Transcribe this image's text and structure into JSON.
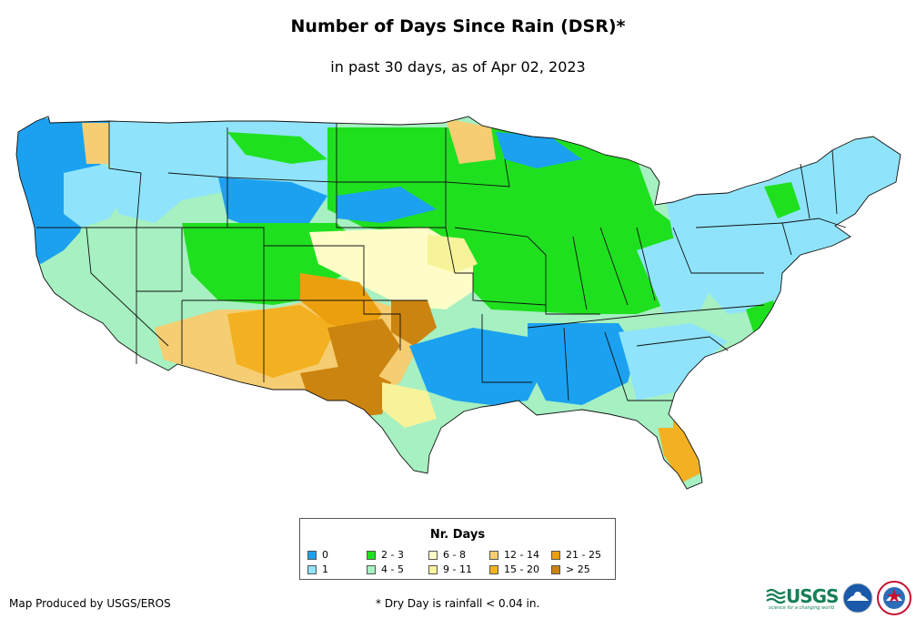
{
  "title": "Number of Days Since Rain (DSR)*",
  "subtitle": "in past 30 days, as of Apr 02, 2023",
  "legend": {
    "title": "Nr. Days",
    "items": [
      {
        "label": "0",
        "color": "#1ba1f0"
      },
      {
        "label": "1",
        "color": "#8fe4fb"
      },
      {
        "label": "2 - 3",
        "color": "#1fe01f"
      },
      {
        "label": "4 - 5",
        "color": "#a6f0c1"
      },
      {
        "label": "6 - 8",
        "color": "#fefdc7"
      },
      {
        "label": "9 - 11",
        "color": "#f6f39a"
      },
      {
        "label": "12 - 14",
        "color": "#f5cd72"
      },
      {
        "label": "15 - 20",
        "color": "#f3b121"
      },
      {
        "label": "21 - 25",
        "color": "#ec9f0e"
      },
      {
        "label": "> 25",
        "color": "#cc8410"
      }
    ]
  },
  "credit": "Map Produced by USGS/EROS",
  "footnote": "* Dry Day is rainfall < 0.04 in.",
  "logos": {
    "usgs": "USGS",
    "usgs_tagline": "science for a changing world",
    "noaa": "NOAA",
    "nws": "National Weather Service"
  }
}
